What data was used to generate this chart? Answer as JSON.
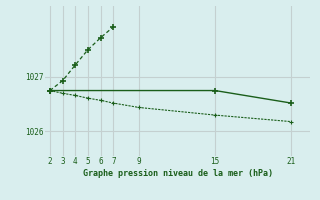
{
  "bg_color": "#d9eeee",
  "grid_color": "#c4d0d0",
  "line_color": "#1a5e1a",
  "xticks": [
    2,
    3,
    4,
    5,
    6,
    7,
    9,
    15,
    21
  ],
  "yticks": [
    1026,
    1027
  ],
  "ylim": [
    1025.55,
    1028.3
  ],
  "xlim": [
    1.6,
    22.5
  ],
  "xlabel": "Graphe pression niveau de la mer (hPa)",
  "line1_x": [
    2,
    3,
    4,
    5,
    6,
    7
  ],
  "line1_y": [
    1026.75,
    1026.93,
    1027.22,
    1027.5,
    1027.72,
    1027.92
  ],
  "line2_x": [
    2,
    15,
    21
  ],
  "line2_y": [
    1026.75,
    1026.75,
    1026.52
  ],
  "line3_x": [
    2,
    3,
    4,
    5,
    6,
    7,
    9,
    15,
    21
  ],
  "line3_y": [
    1026.75,
    1026.7,
    1026.66,
    1026.61,
    1026.57,
    1026.52,
    1026.44,
    1026.3,
    1026.18
  ]
}
